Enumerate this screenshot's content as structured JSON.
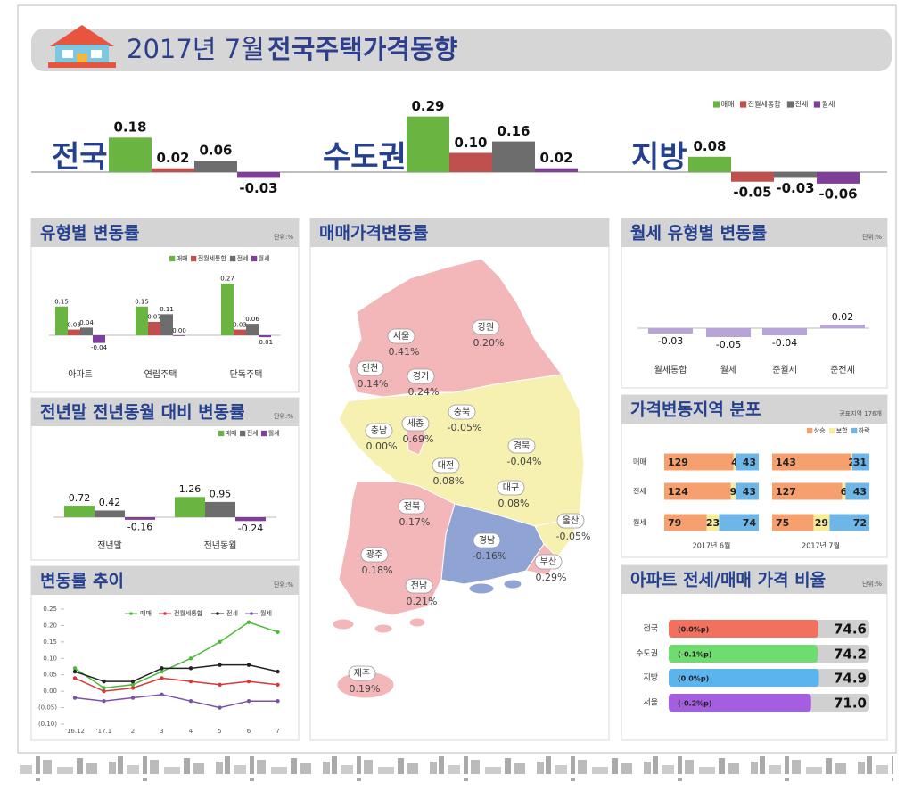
{
  "header": {
    "title_date": "2017년 7월",
    "title": "전국주택가격동향"
  },
  "chart_data": [
    {
      "type": "bar",
      "categories": [
        "전국",
        "수도권",
        "지방"
      ],
      "series": [
        {
          "name": "매매",
          "color": "#6ab541",
          "values": [
            0.18,
            0.29,
            0.08
          ],
          "value_labels": [
            "0.18",
            "0.29",
            "0.08"
          ]
        },
        {
          "name": "전월세통합",
          "color": "#c0504d",
          "values": [
            0.02,
            0.1,
            -0.05
          ],
          "value_labels": [
            "0.02",
            "0.10",
            "-0.05"
          ]
        },
        {
          "name": "전세",
          "color": "#6d6d6d",
          "values": [
            0.06,
            0.16,
            -0.03
          ],
          "value_labels": [
            "0.06",
            "0.16",
            "-0.03"
          ]
        },
        {
          "name": "월세",
          "color": "#7e3f98",
          "values": [
            -0.03,
            0.02,
            -0.06
          ],
          "value_labels": [
            "-0.03",
            "0.02",
            "-0.06"
          ]
        }
      ],
      "ylim": [
        -0.1,
        0.3
      ]
    },
    {
      "type": "bar",
      "title": "유형별 변동률",
      "unit": "단위:%",
      "categories": [
        "아파트",
        "연립주택",
        "단독주택"
      ],
      "series": [
        {
          "name": "매매",
          "color": "#6ab541",
          "values": [
            0.15,
            0.15,
            0.27
          ],
          "value_labels": [
            "0.15",
            "0.15",
            "0.27"
          ]
        },
        {
          "name": "전월세통합",
          "color": "#c0504d",
          "values": [
            0.03,
            0.07,
            0.03
          ],
          "value_labels": [
            "0.03",
            "0.07",
            "0.03"
          ]
        },
        {
          "name": "전세",
          "color": "#6d6d6d",
          "values": [
            0.04,
            0.11,
            0.06
          ],
          "value_labels": [
            "0.04",
            "0.11",
            "0.06"
          ]
        },
        {
          "name": "월세",
          "color": "#7e3f98",
          "values": [
            -0.04,
            0.0,
            -0.01
          ],
          "value_labels": [
            "-0.04",
            "0.00",
            "-0.01"
          ]
        }
      ],
      "ylim": [
        -0.1,
        0.3
      ]
    },
    {
      "type": "bar",
      "title": "전년말 전년동월 대비 변동률",
      "unit": "단위:%",
      "categories": [
        "전년말",
        "전년동월"
      ],
      "series": [
        {
          "name": "매매",
          "color": "#6ab541",
          "values": [
            0.72,
            1.26
          ],
          "value_labels": [
            "0.72",
            "1.26"
          ]
        },
        {
          "name": "전세",
          "color": "#6d6d6d",
          "values": [
            0.42,
            0.95
          ],
          "value_labels": [
            "0.42",
            "0.95"
          ]
        },
        {
          "name": "월세",
          "color": "#7e3f98",
          "values": [
            -0.16,
            -0.24
          ],
          "value_labels": [
            "-0.16",
            "-0.24"
          ]
        }
      ],
      "ylim": [
        -0.5,
        1.5
      ]
    },
    {
      "type": "line",
      "title": "변동률 추이",
      "unit": "단위:%",
      "categories": [
        "'16.12",
        "'17.1",
        "2",
        "3",
        "4",
        "5",
        "6",
        "7"
      ],
      "series": [
        {
          "name": "매매",
          "color": "#4cbb3a",
          "values": [
            0.07,
            0.01,
            0.02,
            0.06,
            0.1,
            0.15,
            0.21,
            0.18
          ]
        },
        {
          "name": "전월세통합",
          "color": "#d9383a",
          "values": [
            0.04,
            0.0,
            0.01,
            0.04,
            0.03,
            0.02,
            0.03,
            0.02
          ]
        },
        {
          "name": "전세",
          "color": "#222222",
          "values": [
            0.06,
            0.03,
            0.03,
            0.07,
            0.07,
            0.08,
            0.08,
            0.06
          ]
        },
        {
          "name": "월세",
          "color": "#7b52ab",
          "values": [
            -0.02,
            -0.03,
            -0.02,
            -0.01,
            -0.03,
            -0.05,
            -0.03,
            -0.03
          ]
        }
      ],
      "ylim": [
        -0.1,
        0.25
      ],
      "yticks": [
        0.25,
        {
          "value": 0.2,
          "label": "0.20"
        },
        0.15,
        {
          "value": 0.1,
          "label": "0.10"
        },
        0.05,
        {
          "value": 0,
          "label": "0.00"
        },
        {
          "value": -0.05,
          "label": "(0.05)"
        },
        {
          "value": -0.1,
          "label": "(0.10)"
        }
      ],
      "grid": false
    },
    {
      "type": "map",
      "title": "매매가격변동률",
      "categories": [
        "서울",
        "인천",
        "경기",
        "강원",
        "충북",
        "충남",
        "세종",
        "대전",
        "경북",
        "대구",
        "전북",
        "광주",
        "전남",
        "경남",
        "울산",
        "부산",
        "제주"
      ],
      "values": [
        0.41,
        0.14,
        0.24,
        0.2,
        -0.05,
        0.0,
        0.69,
        0.08,
        -0.04,
        0.08,
        0.17,
        0.18,
        0.21,
        -0.16,
        -0.05,
        0.29,
        0.19
      ],
      "value_labels": [
        "0.41%",
        "0.14%",
        "0.24%",
        "0.20%",
        "-0.05%",
        "0.00%",
        "0.69%",
        "0.08%",
        "-0.04%",
        "0.08%",
        "0.17%",
        "0.18%",
        "0.21%",
        "-0.16%",
        "-0.05%",
        "0.29%",
        "0.19%"
      ]
    },
    {
      "type": "bar",
      "title": "월세 유형별 변동률",
      "unit": "단위:%",
      "categories": [
        "월세통합",
        "월세",
        "준월세",
        "준전세"
      ],
      "values": [
        -0.03,
        -0.05,
        -0.04,
        0.02
      ],
      "value_labels": [
        "-0.03",
        "-0.05",
        "-0.04",
        "0.02"
      ],
      "color": "#b7a5d8",
      "ylim": [
        -0.1,
        0.1
      ]
    },
    {
      "type": "stacked-bar",
      "title": "가격변동지역 분포",
      "unit": "공표지역 176개",
      "categories": [
        "매매",
        "전세",
        "월세"
      ],
      "legend": [
        {
          "name": "상승",
          "color": "#f5a06e"
        },
        {
          "name": "보합",
          "color": "#f6ec9a"
        },
        {
          "name": "하락",
          "color": "#6fb6e8"
        }
      ],
      "panels": [
        {
          "label": "2017년 6월",
          "values": [
            [
              129,
              4,
              43
            ],
            [
              124,
              9,
              43
            ],
            [
              79,
              23,
              74
            ]
          ]
        },
        {
          "label": "2017년 7월",
          "values": [
            [
              143,
              2,
              31
            ],
            [
              127,
              6,
              43
            ],
            [
              75,
              29,
              72
            ]
          ]
        }
      ],
      "xlim": [
        0,
        176
      ]
    },
    {
      "type": "hbar",
      "title": "아파트 전세/매매 가격 비율",
      "unit": "단위:%",
      "categories": [
        "전국",
        "수도권",
        "지방",
        "서울"
      ],
      "values": [
        74.6,
        74.2,
        74.9,
        71.0
      ],
      "value_labels": [
        "74.6",
        "74.2",
        "74.9",
        "71.0"
      ],
      "change_labels": [
        "(0.0%p)",
        "(-0.1%p)",
        "(0.0%p)",
        "(-0.2%p)"
      ],
      "colors": [
        "#f2705e",
        "#6fdc6f",
        "#5ab4ee",
        "#a35fe0"
      ],
      "xlim": [
        0,
        100
      ]
    }
  ]
}
